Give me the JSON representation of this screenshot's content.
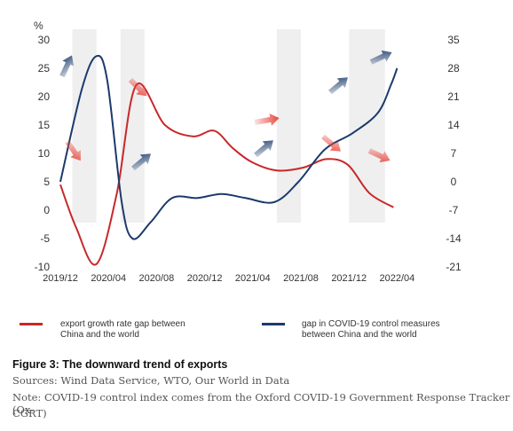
{
  "chart_data": {
    "type": "line",
    "left_axis_unit": "%",
    "x_ticks": [
      "2019/12",
      "2020/04",
      "2020/08",
      "2020/12",
      "2021/04",
      "2021/08",
      "2021/12",
      "2022/04"
    ],
    "left_ticks": [
      30,
      25,
      20,
      15,
      10,
      5,
      0,
      -5,
      -10
    ],
    "right_ticks": [
      35,
      28,
      21,
      14,
      7,
      0,
      -7,
      -14,
      -21
    ],
    "ylim_left": [
      -10,
      30
    ],
    "ylim_right": [
      -21,
      35
    ],
    "shaded_periods": [
      [
        "2020/01",
        "2020/03"
      ],
      [
        "2020/05",
        "2020/07"
      ],
      [
        "2021/06",
        "2021/08"
      ],
      [
        "2021/12",
        "2022/03"
      ]
    ],
    "series": [
      {
        "name": "export growth rate gap between China and the world",
        "color": "#c8282a",
        "axis": "left",
        "x": [
          0,
          1.3,
          3,
          4.7,
          6.3,
          8.7,
          11,
          12.8,
          14.3,
          15.9,
          18,
          20.2,
          22.1,
          23.9,
          25.7,
          27.7
        ],
        "values": [
          4.5,
          -3,
          -9.5,
          3,
          22,
          15,
          13,
          14,
          11,
          8.5,
          7,
          7.5,
          9,
          8,
          3,
          0.5
        ]
      },
      {
        "name": "gap in COVID-19 control measures between China and the world",
        "color": "#1b3a6b",
        "axis": "right",
        "x": [
          0,
          1.8,
          3,
          3.9,
          5.1,
          6,
          7.5,
          9.3,
          11.4,
          13.4,
          15.4,
          17.8,
          19.8,
          22,
          24.3,
          26.4,
          27.5,
          28
        ],
        "values": [
          0,
          23,
          31,
          25,
          -5,
          -14,
          -10,
          -4,
          -4,
          -3,
          -4,
          -5,
          0,
          8,
          12,
          17,
          24,
          28
        ]
      }
    ]
  },
  "legend": {
    "red_label_line1": "export growth rate gap between",
    "red_label_line2": "China and the world",
    "blue_label_line1": "gap in COVID-19 control measures",
    "blue_label_line2": "between China and the world"
  },
  "figure": {
    "title": "Figure 3: The downward trend of exports",
    "sources": "Sources: Wind Data Service, WTO, Our World in Data",
    "note_line1": "Note: COVID-19 control index comes from the Oxford COVID-19 Government Response Tracker (Ox-",
    "note_line2": "CGRT)"
  }
}
